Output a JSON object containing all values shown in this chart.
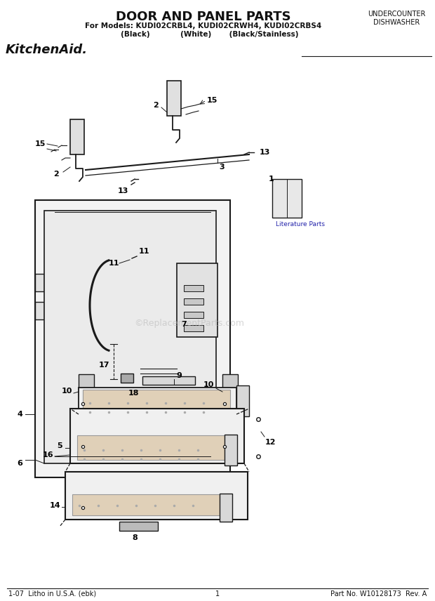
{
  "title": "DOOR AND PANEL PARTS",
  "subtitle1": "For Models: KUDI02CRBL4, KUDI02CRWH4, KUDI02CRBS4",
  "subtitle2": "     (Black)            (White)       (Black/Stainless)",
  "brand": "KitchenAid.",
  "top_right1": "UNDERCOUNTER",
  "top_right2": "DISHWASHER",
  "footer_left": "1-07  Litho in U.S.A. (ebk)",
  "footer_center": "1",
  "footer_right": "Part No. W10128173  Rev. A",
  "watermark": "©ReplacementParts.com",
  "lit_parts_label": "Literature Parts",
  "bg_color": "#ffffff",
  "line_color": "#1a1a1a",
  "label_color": "#111111"
}
